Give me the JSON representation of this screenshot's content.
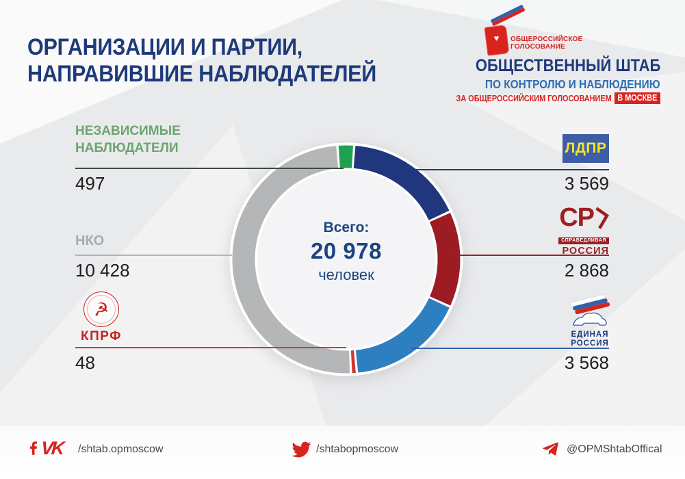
{
  "header": {
    "title_line1": "ОРГАНИЗАЦИИ И ПАРТИИ,",
    "title_line2": "НАПРАВИВШИЕ НАБЛЮДАТЕЛЕЙ",
    "logo": {
      "emblem_glyph": "♥",
      "small_line1": "ОБЩЕРОССИЙСКОЕ",
      "small_line2": "ГОЛОСОВАНИЕ",
      "big_line1": "ОБЩЕСТВЕННЫЙ ШТАБ",
      "big_line2": "ПО КОНТРОЛЮ И НАБЛЮДЕНИЮ",
      "big_line3": "ЗА ОБЩЕРОССИЙСКИМ ГОЛОСОВАНИЕМ",
      "badge": "В МОСКВЕ"
    }
  },
  "chart_data": {
    "type": "pie",
    "subtype": "donut",
    "title": "ОРГАНИЗАЦИИ И ПАРТИИ, НАПРАВИВШИЕ НАБЛЮДАТЕЛЕЙ",
    "legend_position": "callouts-around-donut",
    "total": 20978,
    "start_angle_deg": -4.5,
    "center": {
      "label": "Всего:",
      "value": "20 978",
      "unit": "человек"
    },
    "segments": [
      {
        "id": "independent",
        "label": "НЕЗАВИСИМЫЕ НАБЛЮДАТЕЛИ",
        "value": 497,
        "display": "497",
        "color": "#1fa24f"
      },
      {
        "id": "ldpr",
        "label": "ЛДПР",
        "value": 3569,
        "display": "3 569",
        "color": "#20377e"
      },
      {
        "id": "sr",
        "label": "СПРАВЕДЛИВАЯ РОССИЯ",
        "value": 2868,
        "display": "2 868",
        "color": "#9d1c24"
      },
      {
        "id": "er",
        "label": "ЕДИНАЯ РОССИЯ",
        "value": 3568,
        "display": "3 568",
        "color": "#2e7fc0"
      },
      {
        "id": "kprf",
        "label": "КПРФ",
        "value": 48,
        "display": "48",
        "color": "#cf3535"
      },
      {
        "id": "nko",
        "label": "НКО",
        "value": 10428,
        "display": "10 428",
        "color": "#b4b6b8"
      }
    ]
  },
  "callouts": {
    "independent": {
      "line1": "НЕЗАВИСИМЫЕ",
      "line2": "НАБЛЮДАТЕЛИ"
    },
    "nko": "НКО",
    "kprf": {
      "name": "КПРФ",
      "emblem_glyph": "☭"
    },
    "ldpr": "ЛДПР",
    "sr": {
      "main": "СР",
      "ribbon": "СПРАВЕДЛИВАЯ",
      "bottom": "РОССИЯ"
    },
    "er": {
      "line1": "ЕДИНАЯ",
      "line2": "РОССИЯ"
    }
  },
  "footer": {
    "icons": [
      "facebook",
      "vk",
      "twitter",
      "telegram"
    ],
    "vk_text": "VK",
    "facebook_vk_handle": "/shtab.opmoscow",
    "twitter_handle": "/shtabopmoscow",
    "telegram_handle": "@OPMShtabOffical"
  },
  "colors": {
    "bg": "#e9eaec",
    "navy": "#1e3a7b",
    "blue_mid": "#2e6db4",
    "red": "#d8231f",
    "green_label": "#6ca571",
    "gray_label": "#a9abad",
    "dark_text": "#1d1d1f",
    "footer_text": "#4a4a4a",
    "center_text": "#1b4580",
    "ldpr_bg": "#3d5ea6",
    "ldpr_text": "#f8e629",
    "sr_red": "#9c1f23",
    "er_blue": "#2d63ac",
    "kprf_red": "#c8241e",
    "line_independent": "#3f4a42"
  }
}
